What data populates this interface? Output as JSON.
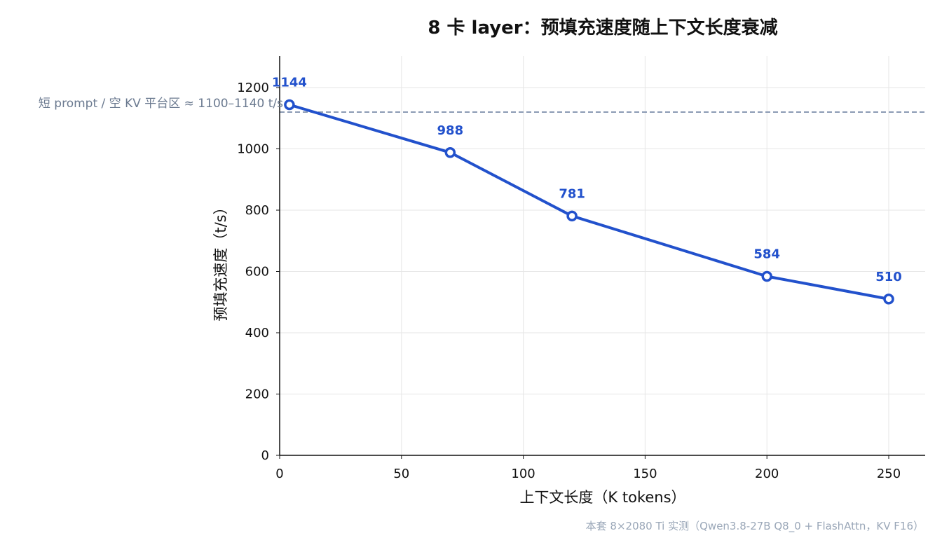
{
  "chart_data": {
    "type": "line",
    "title": "8 卡 layer：预填充速度随上下文长度衰减",
    "xlabel": "上下文长度（K tokens）",
    "ylabel": "预填充速度（t/s）",
    "xlim": [
      0,
      265
    ],
    "ylim": [
      0,
      1300
    ],
    "x_ticks": [
      0,
      50,
      100,
      150,
      200,
      250
    ],
    "y_ticks": [
      0,
      200,
      400,
      600,
      800,
      1000,
      1200
    ],
    "grid": true,
    "series": [
      {
        "x": [
          4,
          70,
          120,
          200,
          250
        ],
        "y": [
          1144,
          988,
          781,
          584,
          510
        ],
        "labels": [
          "1144",
          "988",
          "781",
          "584",
          "510"
        ],
        "color": "#2251cc"
      }
    ],
    "reference_line": {
      "y": 1120,
      "label": "短 prompt / 空 KV 平台区 ≈ 1100–1140 t/s",
      "color": "#8b9bb4"
    },
    "footnote": "本套 8×2080 Ti 实测（Qwen3.8-27B Q8_0 + FlashAttn，KV F16）"
  }
}
